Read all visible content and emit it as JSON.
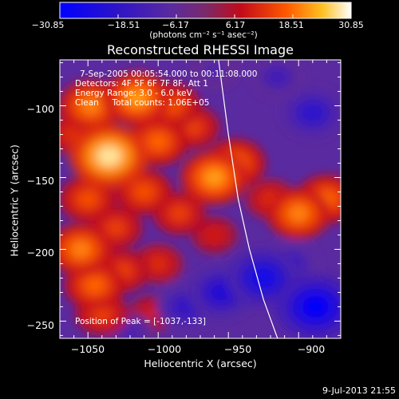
{
  "chart_data": {
    "type": "heatmap",
    "title": "Reconstructed RHESSI Image",
    "xlabel": "Heliocentric X (arcsec)",
    "ylabel": "Heliocentric Y (arcsec)",
    "xlim": [
      -1070,
      -870
    ],
    "ylim": [
      -262,
      -68
    ],
    "x_ticks": [
      -1050,
      -1000,
      -950,
      -900
    ],
    "y_ticks": [
      -250,
      -200,
      -150,
      -100
    ],
    "x_tick_labels": [
      "−1050",
      "−1000",
      "−950",
      "−900"
    ],
    "y_tick_labels": [
      "−250",
      "−200",
      "−150",
      "−100"
    ],
    "colorbar": {
      "range": [
        -30.85,
        30.85
      ],
      "tick_labels": [
        "−30.85",
        "−18.51",
        "−6.17",
        "6.17",
        "18.51",
        "30.85"
      ],
      "unit_label": "(photons cm⁻² s⁻¹ asec⁻²)"
    },
    "annotations": [
      "7-Sep-2005 00:05:54.000 to 00:11:08.000",
      "Detectors: 4F 5F 6F 7F 8F, Att 1",
      "Energy Range: 3.0 - 6.0 keV",
      "Clean     Total counts: 1.06E+05"
    ],
    "peak_label": "Position of Peak = [-1037,-133]",
    "peak": [
      -1037,
      -133
    ],
    "limb_curve": [
      [
        -957,
        -68
      ],
      [
        -950,
        -120
      ],
      [
        -943,
        -165
      ],
      [
        -935,
        -200
      ],
      [
        -925,
        -235
      ],
      [
        -915,
        -262
      ]
    ],
    "blobs": [
      {
        "x": -1035,
        "y": -135,
        "value": 28
      },
      {
        "x": -1048,
        "y": -100,
        "value": 20
      },
      {
        "x": -1015,
        "y": -95,
        "value": 22
      },
      {
        "x": -1000,
        "y": -125,
        "value": 18
      },
      {
        "x": -990,
        "y": -100,
        "value": 16
      },
      {
        "x": -975,
        "y": -115,
        "value": 14
      },
      {
        "x": -960,
        "y": -150,
        "value": 22
      },
      {
        "x": -945,
        "y": -140,
        "value": 18
      },
      {
        "x": -1010,
        "y": -160,
        "value": 16
      },
      {
        "x": -985,
        "y": -175,
        "value": 14
      },
      {
        "x": -1050,
        "y": -165,
        "value": 16
      },
      {
        "x": -1030,
        "y": -185,
        "value": 14
      },
      {
        "x": -1055,
        "y": -200,
        "value": 20
      },
      {
        "x": -1045,
        "y": -225,
        "value": 18
      },
      {
        "x": -1025,
        "y": -215,
        "value": 14
      },
      {
        "x": -1000,
        "y": -210,
        "value": 12
      },
      {
        "x": -1040,
        "y": -245,
        "value": 14
      },
      {
        "x": -1005,
        "y": -245,
        "value": 10
      },
      {
        "x": -900,
        "y": -175,
        "value": 20
      },
      {
        "x": -880,
        "y": -165,
        "value": 18
      },
      {
        "x": -920,
        "y": -165,
        "value": 12
      },
      {
        "x": -960,
        "y": -190,
        "value": 10
      },
      {
        "x": -1062,
        "y": -120,
        "value": 12
      },
      {
        "x": -955,
        "y": -230,
        "value": -22
      },
      {
        "x": -925,
        "y": -220,
        "value": -26
      },
      {
        "x": -888,
        "y": -240,
        "value": -30
      },
      {
        "x": -905,
        "y": -210,
        "value": -16
      },
      {
        "x": -890,
        "y": -105,
        "value": -20
      },
      {
        "x": -915,
        "y": -80,
        "value": -14
      },
      {
        "x": -960,
        "y": -75,
        "value": -10
      },
      {
        "x": -980,
        "y": -240,
        "value": -18
      },
      {
        "x": -1020,
        "y": -258,
        "value": -12
      }
    ]
  },
  "footer": {
    "timestamp": "9-Jul-2013 21:55"
  }
}
